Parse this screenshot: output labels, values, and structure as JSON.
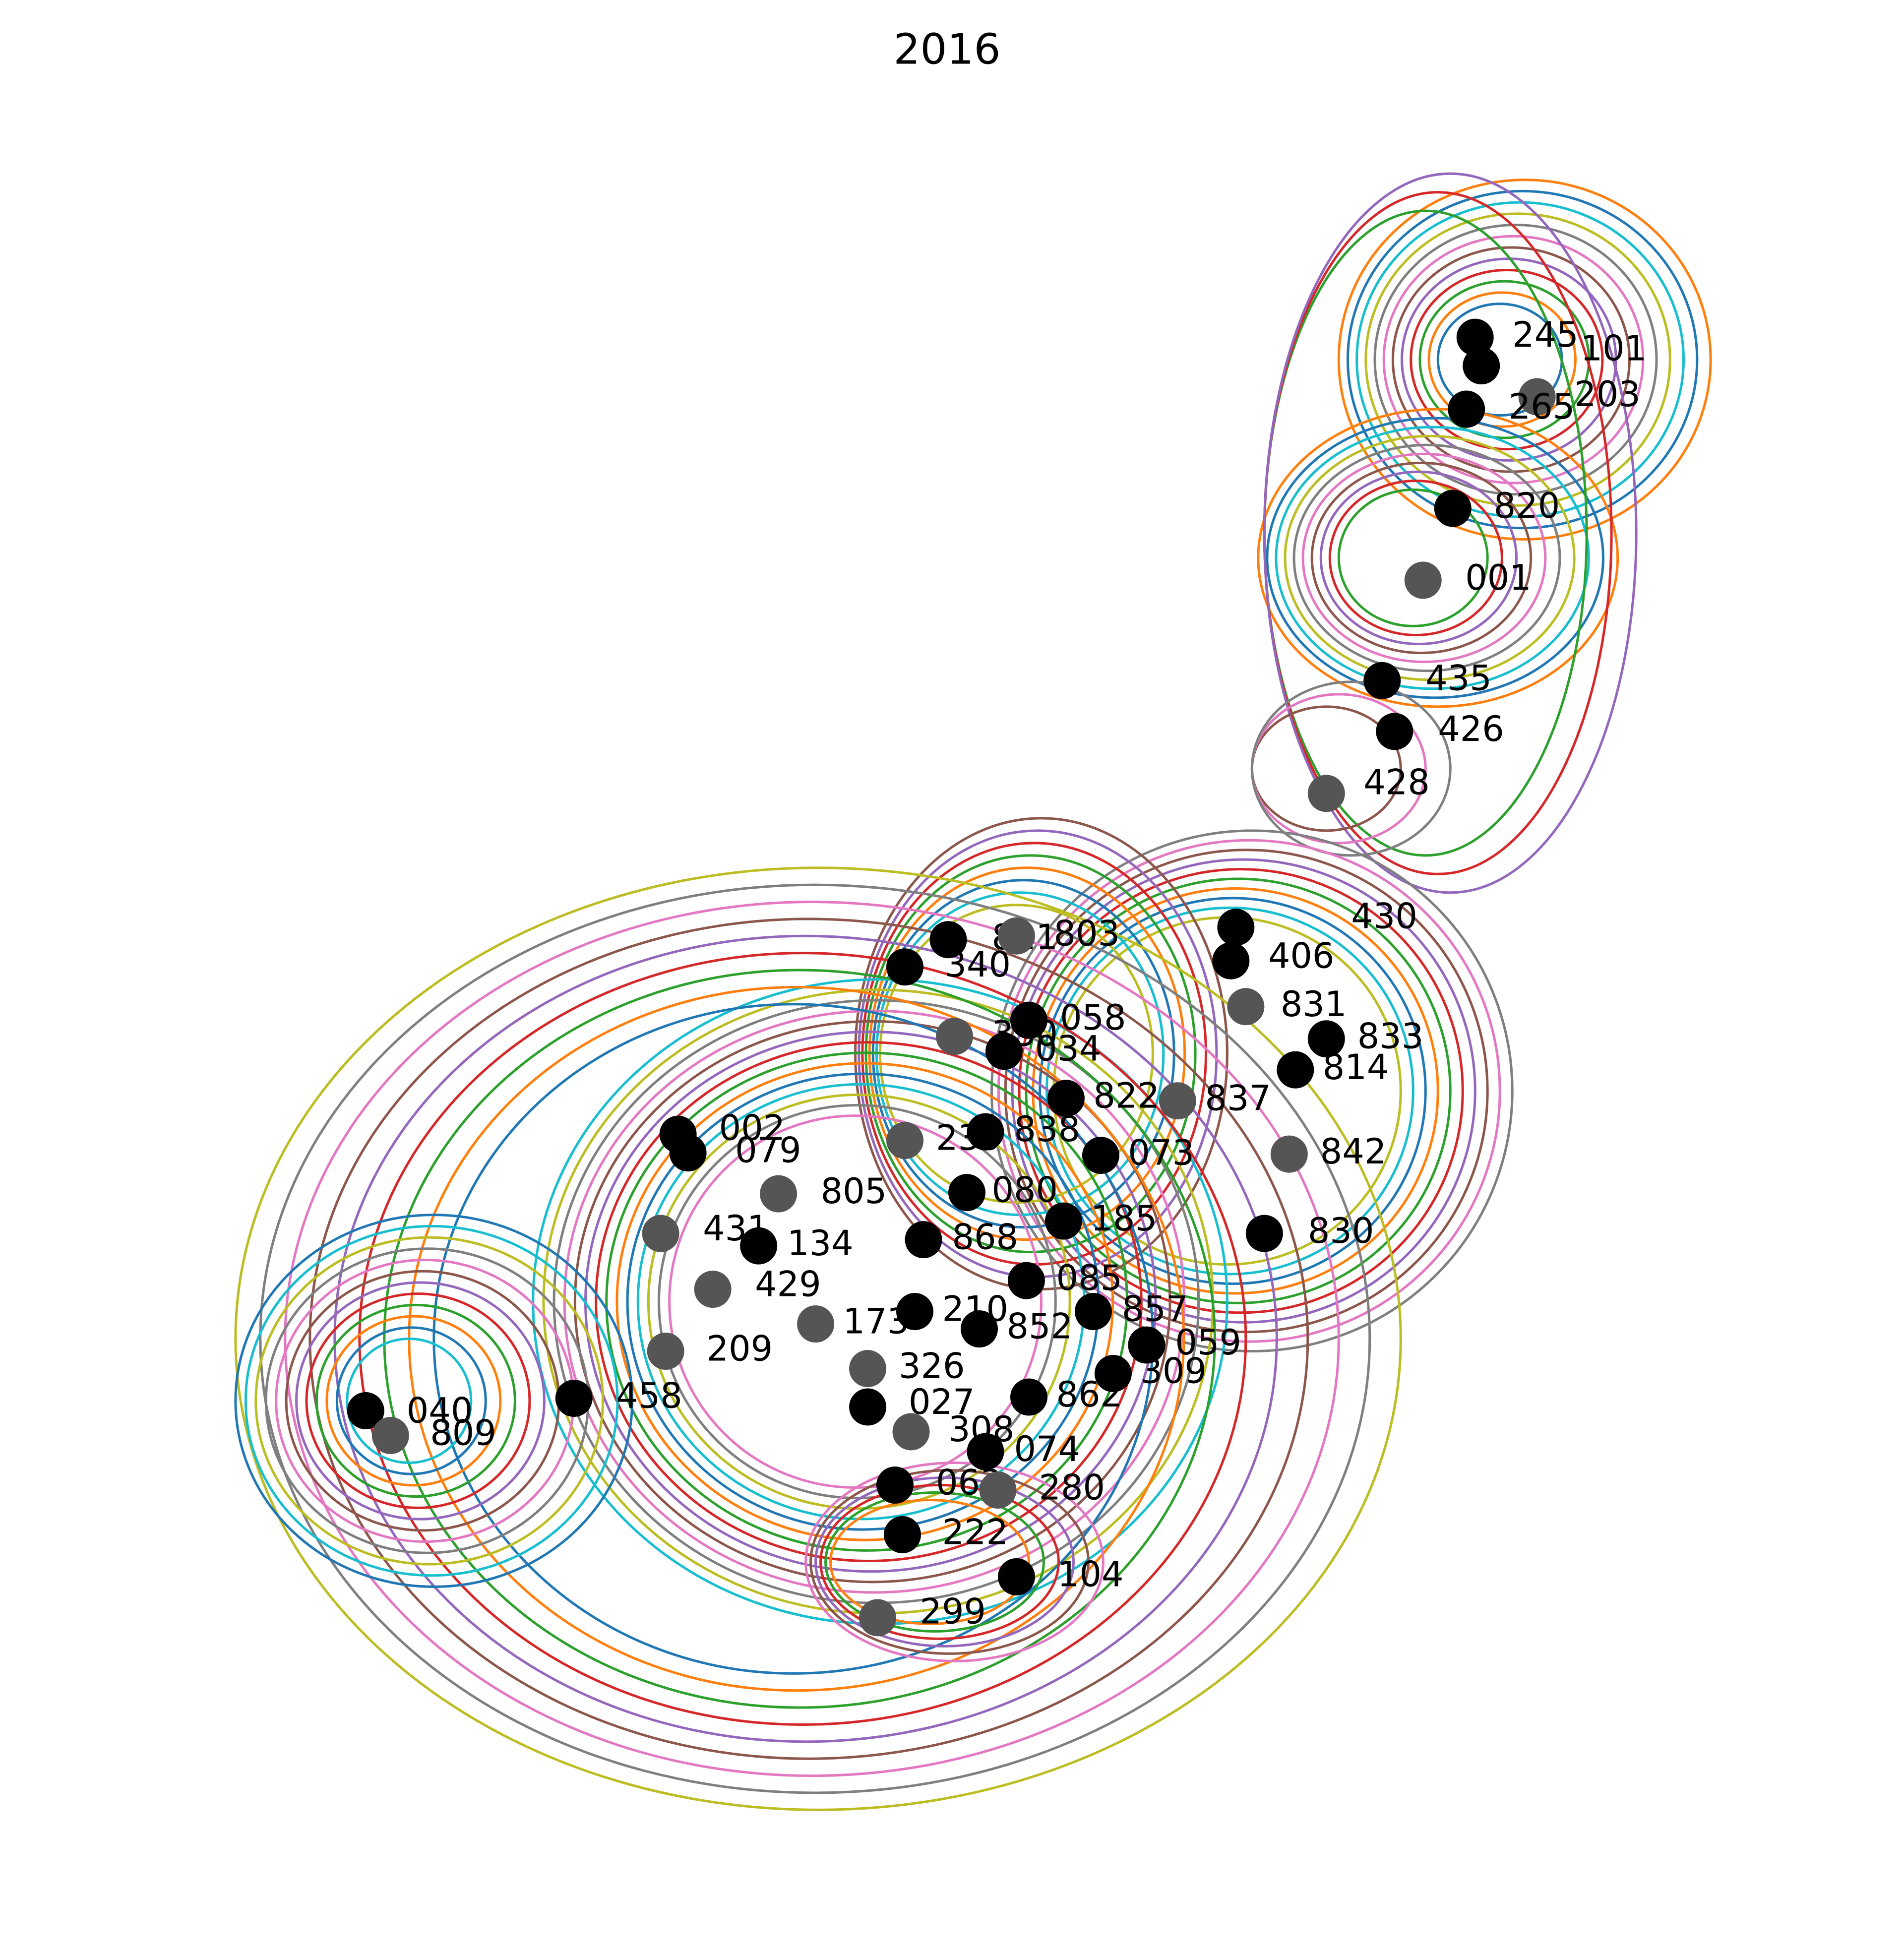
{
  "title": "2016",
  "nodes": [
    {
      "label": "245"
    },
    {
      "label": "101"
    },
    {
      "label": "203"
    },
    {
      "label": "265"
    },
    {
      "label": "820"
    },
    {
      "label": "001"
    },
    {
      "label": "435"
    },
    {
      "label": "426"
    },
    {
      "label": "428"
    },
    {
      "label": "430"
    },
    {
      "label": "406"
    },
    {
      "label": "831"
    },
    {
      "label": "833"
    },
    {
      "label": "814"
    },
    {
      "label": "842"
    },
    {
      "label": "830"
    },
    {
      "label": "811"
    },
    {
      "label": "803"
    },
    {
      "label": "340"
    },
    {
      "label": "058"
    },
    {
      "label": "330"
    },
    {
      "label": "034"
    },
    {
      "label": "822"
    },
    {
      "label": "837"
    },
    {
      "label": "002"
    },
    {
      "label": "079"
    },
    {
      "label": "239"
    },
    {
      "label": "838"
    },
    {
      "label": "073"
    },
    {
      "label": "805"
    },
    {
      "label": "080"
    },
    {
      "label": "185"
    },
    {
      "label": "431"
    },
    {
      "label": "134"
    },
    {
      "label": "868"
    },
    {
      "label": "429"
    },
    {
      "label": "085"
    },
    {
      "label": "857"
    },
    {
      "label": "173"
    },
    {
      "label": "210"
    },
    {
      "label": "852"
    },
    {
      "label": "209"
    },
    {
      "label": "059"
    },
    {
      "label": "309"
    },
    {
      "label": "326"
    },
    {
      "label": "458"
    },
    {
      "label": "040"
    },
    {
      "label": "809"
    },
    {
      "label": "862"
    },
    {
      "label": "027"
    },
    {
      "label": "308"
    },
    {
      "label": "074"
    },
    {
      "label": "063"
    },
    {
      "label": "280"
    },
    {
      "label": "222"
    },
    {
      "label": "104"
    },
    {
      "label": "299"
    }
  ]
}
